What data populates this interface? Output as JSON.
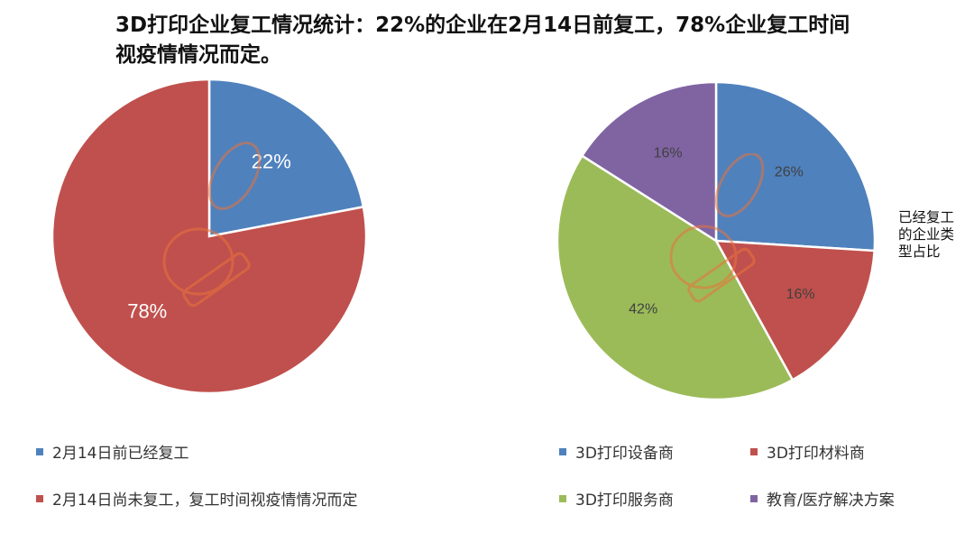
{
  "title": "3D打印企业复工情况统计：22%的企业在2月14日前复工，78%企业复工时间视疫情情况而定。",
  "chart_data": [
    {
      "type": "pie",
      "labels": [
        "2月14日前已经复工",
        "2月14日尚未复工，复工时间视疫情情况而定"
      ],
      "values": [
        22,
        78
      ],
      "value_labels": [
        "22%",
        "78%"
      ],
      "colors": [
        "#4F81BD",
        "#C0504D"
      ],
      "label_color": "#ffffff",
      "legend_position": "bottom"
    },
    {
      "type": "pie",
      "side_label": "已经复工的企业类型占比",
      "labels": [
        "3D打印设备商",
        "3D打印材料商",
        "3D打印服务商",
        "教育/医疗解决方案"
      ],
      "values": [
        26,
        16,
        42,
        16
      ],
      "value_labels": [
        "26%",
        "16%",
        "42%",
        "16%"
      ],
      "colors": [
        "#4F81BD",
        "#C0504D",
        "#9BBB59",
        "#8064A2"
      ],
      "label_color": "#404040",
      "legend_position": "bottom"
    }
  ],
  "watermark": {
    "text": "3D打印",
    "color": "#E8743B"
  }
}
